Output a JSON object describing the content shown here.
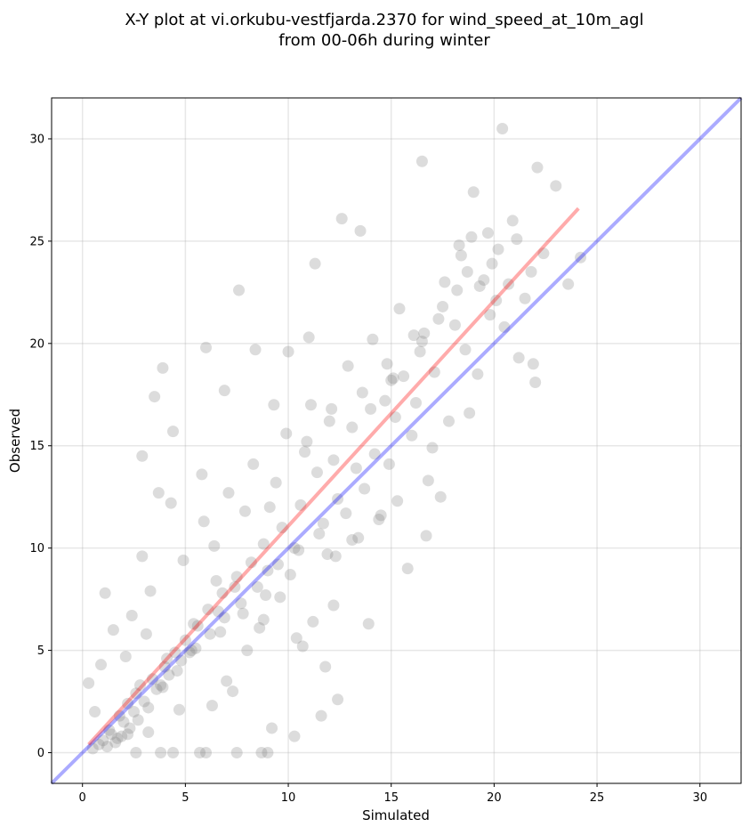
{
  "chart_data": {
    "type": "scatter",
    "title_line1": "X-Y plot at vi.orkubu-vestfjarda.2370 for wind_speed_at_10m_agl",
    "title_line2": "from 00-06h during winter",
    "xlabel": "Simulated",
    "ylabel": "Observed",
    "xlim": [
      -1.5,
      32
    ],
    "ylim": [
      -1.5,
      32
    ],
    "xticks": [
      0,
      5,
      10,
      15,
      20,
      25,
      30
    ],
    "yticks": [
      0,
      5,
      10,
      15,
      20,
      25,
      30
    ],
    "grid": true,
    "colors": {
      "points": "#808080",
      "fit_line": "#ff0000",
      "identity_line": "#0000ff"
    },
    "fit_line": {
      "x": [
        0.3,
        24.1
      ],
      "y": [
        0.4,
        26.6
      ]
    },
    "identity_line": {
      "x": [
        -1.5,
        32
      ],
      "y": [
        -1.5,
        32
      ]
    },
    "points": {
      "x": [
        20.4,
        16.5,
        22.1,
        23.0,
        19.0,
        18.9,
        12.6,
        13.5,
        7.6,
        3.9,
        3.5,
        6.0,
        8.4,
        6.9,
        4.4,
        2.9,
        10.0,
        11.3,
        11.0,
        9.3,
        5.8,
        4.3,
        3.7,
        2.9,
        1.5,
        1.1,
        0.9,
        0.6,
        0.3,
        2.1,
        2.8,
        3.1,
        4.1,
        5.4,
        6.6,
        7.4,
        9.0,
        10.3,
        11.7,
        12.4,
        13.3,
        14.2,
        15.2,
        16.2,
        17.1,
        18.6,
        19.8,
        20.7,
        21.8,
        18.2,
        17.3,
        16.5,
        15.6,
        14.7,
        13.1,
        12.2,
        11.4,
        10.6,
        9.7,
        8.8,
        8.2,
        7.5,
        6.8,
        6.1,
        5.6,
        5.0,
        4.5,
        4.0,
        3.4,
        2.6,
        2.2,
        1.8,
        1.3,
        1.0,
        7.0,
        8.0,
        8.8,
        6.3,
        7.3,
        9.2,
        10.3,
        11.6,
        12.4,
        11.8,
        10.7,
        13.9,
        15.8,
        16.7,
        17.4,
        14.5,
        13.1,
        12.3,
        9.6,
        8.6,
        3.2,
        4.7,
        2.2,
        1.6,
        3.8,
        5.2,
        6.5,
        9.1,
        10.9,
        12.1,
        15.0,
        16.4,
        18.1,
        19.5,
        20.2,
        21.1,
        22.4,
        19.2,
        17.8,
        16.0,
        14.9,
        13.7,
        12.8,
        11.5,
        10.5,
        9.5,
        8.5,
        7.7,
        6.9,
        6.2,
        5.5,
        4.8,
        4.2,
        3.6,
        3.0,
        2.5,
        2.0,
        1.4,
        0.8,
        0.5,
        2.4,
        3.3,
        4.9,
        5.9,
        7.1,
        8.3,
        9.9,
        11.1,
        12.9,
        14.1,
        15.4,
        17.6,
        18.4,
        19.7,
        20.9,
        21.5,
        17.0,
        18.8,
        16.8,
        15.3,
        14.4,
        13.4,
        11.9,
        10.1,
        8.9,
        7.8,
        6.7,
        5.3,
        4.6,
        3.9,
        3.2,
        2.7,
        2.3,
        1.9,
        1.7,
        1.2,
        6.4,
        7.9,
        9.4,
        10.8,
        12.0,
        13.6,
        14.8,
        16.1,
        17.5,
        18.7,
        19.3,
        20.5,
        21.2,
        22.0,
        4.4,
        5.7,
        6.0,
        7.5,
        8.7,
        9.0,
        3.8,
        2.6,
        14.0,
        15.1,
        16.6,
        12.2,
        11.2,
        10.4,
        18.3,
        19.9,
        20.1,
        21.9,
        23.6,
        24.2
      ],
      "y": [
        30.5,
        28.9,
        28.6,
        27.7,
        27.4,
        25.2,
        26.1,
        25.5,
        22.6,
        18.8,
        17.4,
        19.8,
        19.7,
        17.7,
        15.7,
        14.5,
        19.6,
        23.9,
        20.3,
        17.0,
        13.6,
        12.2,
        12.7,
        9.6,
        6.0,
        7.8,
        4.3,
        2.0,
        3.4,
        4.7,
        3.3,
        5.8,
        4.6,
        6.3,
        6.9,
        8.1,
        8.9,
        10.0,
        11.2,
        12.4,
        13.9,
        14.6,
        16.4,
        17.1,
        18.6,
        19.7,
        21.4,
        22.9,
        23.5,
        22.6,
        21.2,
        20.1,
        18.4,
        17.2,
        15.9,
        14.3,
        13.7,
        12.1,
        11.0,
        10.2,
        9.3,
        8.6,
        7.8,
        7.0,
        6.2,
        5.5,
        4.9,
        4.2,
        3.6,
        2.9,
        2.4,
        1.8,
        1.1,
        0.6,
        3.5,
        5.0,
        6.5,
        2.3,
        3.0,
        1.2,
        0.8,
        1.8,
        2.6,
        4.2,
        5.2,
        6.3,
        9.0,
        10.6,
        12.5,
        11.6,
        10.4,
        9.6,
        7.6,
        6.1,
        1.0,
        2.1,
        0.9,
        0.5,
        3.3,
        4.9,
        8.4,
        12.0,
        15.2,
        16.8,
        18.2,
        19.6,
        20.9,
        23.1,
        24.6,
        25.1,
        24.4,
        18.5,
        16.2,
        15.5,
        14.1,
        12.9,
        11.7,
        10.7,
        9.9,
        9.2,
        8.1,
        7.3,
        6.6,
        5.8,
        5.1,
        4.5,
        3.8,
        3.1,
        2.5,
        2.0,
        1.5,
        0.9,
        0.4,
        0.2,
        6.7,
        7.9,
        9.4,
        11.3,
        12.7,
        14.1,
        15.6,
        17.0,
        18.9,
        20.2,
        21.7,
        23.0,
        24.3,
        25.4,
        26.0,
        22.2,
        14.9,
        16.6,
        13.3,
        12.3,
        11.4,
        10.5,
        9.7,
        8.7,
        7.7,
        6.8,
        5.9,
        5.0,
        4.0,
        3.2,
        2.2,
        1.6,
        1.2,
        0.8,
        0.7,
        0.3,
        10.1,
        11.8,
        13.2,
        14.7,
        16.2,
        17.6,
        19.0,
        20.4,
        21.8,
        23.5,
        22.8,
        20.8,
        19.3,
        18.1,
        0.0,
        0.0,
        0.0,
        0.0,
        0.0,
        0.0,
        0.0,
        0.0,
        16.8,
        18.3,
        20.5,
        7.2,
        6.4,
        5.6,
        24.8,
        23.9,
        22.1,
        19.0,
        22.9,
        24.2
      ]
    }
  }
}
